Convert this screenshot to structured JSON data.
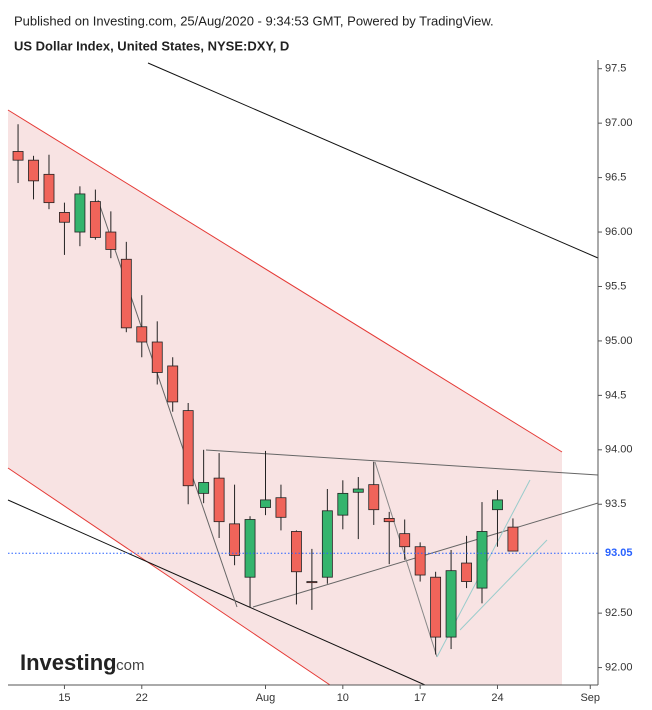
{
  "chart_data": {
    "type": "candlestick",
    "published": "Published on Investing.com, 25/Aug/2020 - 9:34:53 GMT, Powered by TradingView.",
    "title": "US Dollar Index, United States, NYSE:DXY, D",
    "logo": {
      "name": "Investing",
      "suffix": ".com"
    },
    "x": [
      0,
      1,
      2,
      3,
      4,
      5,
      6,
      7,
      8,
      9,
      10,
      11,
      12,
      13,
      14,
      15,
      16,
      17,
      18,
      19,
      20,
      21,
      22,
      23,
      24,
      25,
      26,
      27,
      28,
      29,
      30,
      31,
      32
    ],
    "open": [
      96.74,
      96.66,
      96.53,
      96.18,
      96.0,
      96.28,
      96.0,
      95.75,
      95.13,
      94.99,
      94.77,
      94.36,
      93.6,
      93.74,
      93.32,
      92.83,
      93.47,
      93.56,
      93.25,
      92.79,
      92.83,
      93.4,
      93.61,
      93.68,
      93.37,
      93.23,
      93.11,
      92.83,
      92.28,
      92.96,
      92.73,
      93.45,
      93.29
    ],
    "high": [
      96.99,
      96.7,
      96.71,
      96.27,
      96.42,
      96.39,
      96.19,
      95.91,
      95.42,
      95.18,
      94.85,
      94.43,
      94.0,
      93.97,
      93.68,
      93.39,
      93.99,
      93.68,
      93.26,
      93.09,
      93.64,
      93.72,
      93.75,
      93.89,
      93.43,
      93.36,
      93.15,
      92.88,
      93.08,
      93.21,
      93.52,
      93.63,
      93.37
    ],
    "low": [
      96.45,
      96.3,
      96.21,
      95.79,
      95.87,
      95.93,
      95.76,
      95.08,
      94.85,
      94.6,
      94.35,
      93.5,
      93.51,
      93.19,
      92.94,
      92.55,
      93.4,
      93.26,
      92.58,
      92.53,
      92.77,
      93.27,
      93.18,
      93.31,
      92.95,
      92.99,
      92.79,
      92.12,
      92.17,
      92.73,
      92.59,
      93.11,
      93.07
    ],
    "close": [
      96.66,
      96.47,
      96.27,
      96.09,
      96.35,
      95.95,
      95.84,
      95.12,
      94.99,
      94.71,
      94.44,
      93.67,
      93.7,
      93.34,
      93.03,
      93.36,
      93.54,
      93.38,
      92.88,
      92.78,
      93.44,
      93.6,
      93.64,
      93.45,
      93.34,
      93.11,
      92.85,
      92.28,
      92.89,
      92.79,
      93.25,
      93.54,
      93.07
    ],
    "up_color": "#34b46d",
    "down_color": "#f0645a",
    "last_price": 93.05,
    "last_price_color": "#2962ff",
    "xlim": [
      -0.65,
      37.5
    ],
    "xticks": [
      {
        "value": 3,
        "label": "15"
      },
      {
        "value": 8,
        "label": "22"
      },
      {
        "value": 16,
        "label": "Aug"
      },
      {
        "value": 21,
        "label": "10"
      },
      {
        "value": 26,
        "label": "17"
      },
      {
        "value": 31,
        "label": "24"
      },
      {
        "value": 37,
        "label": "Sep"
      }
    ],
    "ylim": [
      91.84,
      97.58
    ],
    "yticks": [
      {
        "value": 92,
        "label": "92.00"
      },
      {
        "value": 92.5,
        "label": "92.50"
      },
      93.5,
      {
        "value": 94,
        "label": "94.00"
      },
      94.5,
      {
        "value": 95,
        "label": "95.00"
      },
      95.5,
      {
        "value": 96,
        "label": "96.00"
      },
      96.5,
      {
        "value": 97,
        "label": "97.00"
      },
      97.5
    ]
  }
}
